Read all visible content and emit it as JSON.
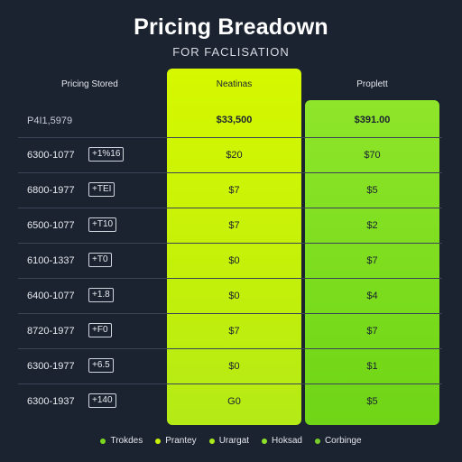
{
  "header": {
    "title": "Pricing Breadown",
    "subtitle": "FOR FACLISATION"
  },
  "columns": {
    "label_header": "Pricing Stored",
    "a_header": "Neatinas",
    "b_header": "Proplett"
  },
  "rows": [
    {
      "label": "P4I1,5979",
      "code": "",
      "a": "$33,500",
      "b": "$391.00"
    },
    {
      "label": "6300-1077",
      "code": "+1%16",
      "a": "$20",
      "b": "$70"
    },
    {
      "label": "6800-1977",
      "code": "+TEI",
      "a": "$7",
      "b": "$5"
    },
    {
      "label": "6500-1077",
      "code": "+T10",
      "a": "$7",
      "b": "$2"
    },
    {
      "label": "6100-1337",
      "code": "+T0",
      "a": "$0",
      "b": "$7"
    },
    {
      "label": "6400-1077",
      "code": "+1.8",
      "a": "$0",
      "b": "$4"
    },
    {
      "label": "8720-1977",
      "code": "+F0",
      "a": "$7",
      "b": "$7"
    },
    {
      "label": "6300-1977",
      "code": "+6.5",
      "a": "$0",
      "b": "$1"
    },
    {
      "label": "6300-1937",
      "code": "+140",
      "a": "G0",
      "b": "$5"
    }
  ],
  "legend": [
    {
      "label": "Trokdes",
      "color": "#7bd81e"
    },
    {
      "label": "Prantey",
      "color": "#c9f20a"
    },
    {
      "label": "Urargat",
      "color": "#a9e81a"
    },
    {
      "label": "Hoksad",
      "color": "#8fe02a"
    },
    {
      "label": "Corbinge",
      "color": "#79cf2a"
    }
  ]
}
